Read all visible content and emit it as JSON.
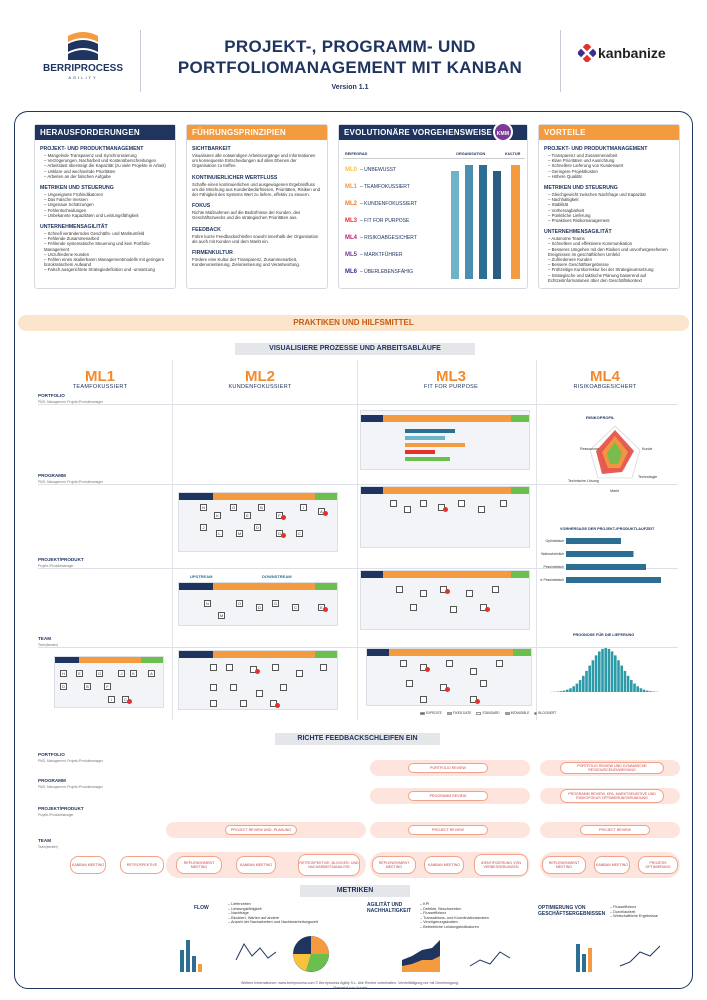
{
  "header": {
    "logo_name": "BERRIPROCESS",
    "logo_sub": "AGILITY",
    "title_line1": "PROJEKT-, PROGRAMM- UND",
    "title_line2": "PORTFOLIOMANAGEMENT MIT KANBAN",
    "version": "Version 1.1",
    "partner": "kanbanize"
  },
  "herausforderungen": {
    "title": "HERAUSFORDERUNGEN",
    "sections": [
      {
        "heading": "PROJEKT- UND PRODUKTMANAGEMENT",
        "items": [
          "Mangelnde Transparenz und Synchronisierung",
          "Verzögerungen, Nacharbeit und Kostenüberschreitungen",
          "Arbeitslast übersteigt die Kapazität (zu viele Projekte in Arbeit)",
          "Unklare und wechselnde Prioritäten",
          "Arbeiten an der falschen Aufgabe"
        ]
      },
      {
        "heading": "METRIKEN UND STEUERUNG",
        "items": [
          "Ungeeignete Frühindikatoren",
          "Das Falsche messen",
          "Ungenaue Schätzungen",
          "Fehlentscheidungen",
          "Unbekannte Kapazitäten und Leistungsfähigkeit"
        ]
      },
      {
        "heading": "UNTERNEHMENSAGILITÄT",
        "items": [
          "Schnell veränderndes Geschäfts- und Marktumfeld",
          "Fehlende Zusammenarbeit",
          "Fehlende systematische Steuerung und kein Portfolio-Management",
          "Unzufriedene Kunden",
          "Fehlen eines skalierbaren Managementmodells mit geringem bürokratischem Aufwand",
          "Falsch ausgerichtete Strategiedefinition und -umsetzung"
        ]
      }
    ]
  },
  "fuehrung": {
    "title": "FÜHRUNGSPRINZIPIEN",
    "sections": [
      {
        "heading": "SICHTBARKEIT",
        "text": "Visualisiere alle notwendigen Arbeitsvorgänge und Informationen um konsequente Entscheidungen auf allen Ebenen der Organisation zu treffen."
      },
      {
        "heading": "KONTINUIERLICHER WERTFLUSS",
        "text": "Schaffe einen kontinuierlichen und ausgewogenen Ergebnisfluss um die Mischung aus Kundenbedürfnissen, Prioritäten, Risiken und der Fähigkeit des Systems Wert zu liefern, effektiv zu steuern."
      },
      {
        "heading": "FOKUS",
        "text": "Richte Maßnahmen auf die Bedürfnisse der Kunden, des Geschäftszwecks und die strategischen Prioritäten aus."
      },
      {
        "heading": "FEEDBACK",
        "text": "Führe kurze Feedbackschleifen sowohl innerhalb der Organisation als auch mit Kunden und dem Markt ein."
      },
      {
        "heading": "FIRMENKULTUR",
        "text": "Fördere eine Kultur der Transparenz, Zusammenarbeit, Kundenorientierung, Zielorientierung und Verantwortung."
      }
    ]
  },
  "evolution": {
    "title": "EVOLUTIONÄRE VORGEHENSWEISE",
    "badge": "KMM",
    "col_reifegrad": "REIFEGRAD",
    "col_organisation": "ORGANISATION",
    "col_kultur": "KULTUR",
    "levels": [
      {
        "ml": "ML0",
        "label": "UNBEWUSST"
      },
      {
        "ml": "ML1",
        "label": "TEAMFOKUSSIERT"
      },
      {
        "ml": "ML2",
        "label": "KUNDENFOKUSSIERT"
      },
      {
        "ml": "ML3",
        "label": "FIT FOR PURPOSE"
      },
      {
        "ml": "ML4",
        "label": "RISIKOABGESICHERT"
      },
      {
        "ml": "ML5",
        "label": "MARKTFÜHRER"
      },
      {
        "ml": "ML6",
        "label": "ÜBERLEBENSFÄHIG"
      }
    ],
    "colors": [
      "#f9c23c",
      "#f39b3e",
      "#ef7b2b",
      "#e4322b",
      "#c0246f",
      "#7a3a96",
      "#3a2f8c"
    ]
  },
  "vorteile": {
    "title": "VORTEILE",
    "sections": [
      {
        "heading": "PROJEKT- UND PRODUKTMANAGEMENT",
        "items": [
          "Transparenz und Zusammenarbeit",
          "Klare Prioritäten und Ausrichtung",
          "Schnellere Lieferung von Kundenwert",
          "Geringere Projektkosten",
          "Höhere Qualität"
        ]
      },
      {
        "heading": "METRIKEN UND STEUERUNG",
        "items": [
          "Gleichgewicht zwischen Nachfrage und Kapazität",
          "Nachhaltigkeit",
          "Stabilität",
          "Vorhersagbarkeit",
          "Pünktliche Lieferung",
          "Proaktives Risikomanagement"
        ]
      },
      {
        "heading": "UNTERNEHMENSAGILITÄT",
        "items": [
          "Autonome Teams",
          "Schnellere und effektivere Kommunikation",
          "Besseres Umgehen mit den Risiken und unvorhergesehenen Ereignissen im geschäftlichen Umfeld",
          "Zufriedenere Kunden",
          "Bessere Geschäftsergebnisse",
          "Frühzeitige Kurskorrektur bei der Strategieumsetzung",
          "Strategische und taktische Planung basierend auf Echtzeitinformationen über den Geschäftskontext"
        ]
      }
    ]
  },
  "praktiken": {
    "band": "PRAKTIKEN UND HILFSMITTEL",
    "visual_title": "VISUALISIERE PROZESSE UND ARBEITSABLÄUFE",
    "columns": [
      {
        "n": "ML1",
        "s": "TEAMFOKUSSIERT"
      },
      {
        "n": "ML2",
        "s": "KUNDENFOKUSSIERT"
      },
      {
        "n": "ML3",
        "s": "FIT FOR PURPOSE"
      },
      {
        "n": "ML4",
        "s": "RISIKOABGESICHERT"
      }
    ],
    "rows": [
      {
        "label": "PORTFOLIO",
        "sub": "PMO, Management, Projekt-/Produktmanager"
      },
      {
        "label": "PROGRAMM",
        "sub": "PMO, Management, Projekt-/Produktmanager"
      },
      {
        "label": "PROJEKT/PRODUKT",
        "sub": "Projekt-/Produktmanager"
      },
      {
        "label": "TEAM",
        "sub": "Team(berater)"
      }
    ],
    "risk_profile": "RISIKOPROFIL",
    "radar_labels": [
      "Ressourcen",
      "Kunde",
      "Technologie",
      "Markt",
      "Technische Lösung"
    ],
    "forecast_title": "VORHERSAGE DER PROJEKT-/PRODUKTLAUFZEIT",
    "forecast_labels": [
      "Optimistisch",
      "Wahrscheinlich",
      "Pessimistisch",
      "Sehr Pessimistisch"
    ],
    "forecast_values": [
      22,
      27,
      32,
      38
    ],
    "delivery_title": "PROGNOSE FÜR DIE LIEFERUNG",
    "ml2_upstream": "UPSTREAM",
    "ml2_downstream": "DOWNSTREAM",
    "legend": [
      "EXPEDITE",
      "FIXED DATE",
      "STANDARD",
      "INTANGIBLE",
      "BLOCKIERT"
    ]
  },
  "feedback": {
    "title": "RICHTE FEEDBACKSCHLEIFEN EIN",
    "ml2_nodes": [
      "PROJECT REVIEW UND -PLANUNG",
      "REPLENISHMENT MEETING",
      "KANBAN MEETING",
      "RETROSPEKTIVE, BLOCKER- UND NACHARBEITSANALYSE"
    ],
    "ml1_nodes": [
      "KANBAN MEETING",
      "RETROSPEKTIVE"
    ],
    "ml3_nodes": [
      "PORTFOLIO REVIEW",
      "PROGRAMM REVIEW",
      "PROJECT REVIEW",
      "REPLENISHMENT MEETING",
      "KANBAN MEETING",
      "IDENTIFIZIERUNG VON VERBESSERUNGEN"
    ],
    "ml4_nodes": [
      "PORTFOLIO REVIEW UND DYNAMISCHE RESSOURCENZUWEISUNG",
      "PROGRAMM REVIEW, KPA, MARKTSENSITIVE UND RISIKOFOKUS OPTIMIERUNGSRUNDUNG",
      "PROJECT REVIEW",
      "REPLENISHMENT MEETING",
      "KANBAN MEETING",
      "PROZESS OPTIMIERUNG"
    ]
  },
  "metriken": {
    "title": "METRIKEN",
    "groups": [
      {
        "heading": "FLOW",
        "items": [
          "Lieferzeiten",
          "Leistungsfähigkeit",
          "Nachfrage",
          "Blockiert, Warten auf andere",
          "Anzahl der Nacharbeiten und Nachbearbeitungszeit"
        ]
      },
      {
        "heading": "AGILITÄT UND NACHHALTIGKEIT",
        "items": [
          "KPI",
          "Defekte, Beschwerden",
          "Flusseffizienz",
          "Transaktions- und Koordinationskosten",
          "Verzögerungskosten",
          "Betriebliche Leistungsindikatoren"
        ]
      },
      {
        "heading": "OPTIMIERUNG VON GESCHÄFTSERGEBNISSEN",
        "items": [
          "Flusseffizienz",
          "Durchlaufzeit",
          "Wirtschaftliche Ergebnisse"
        ]
      }
    ]
  },
  "footer": {
    "line1": "Weitere Informationen: www.berriprocess.com  © Berriprocess Agility S.L.  Alle Rechte vorbehalten. Vervielfältigung nur mit Genehmigung.",
    "line2": "Übersetzt von Xuvate"
  }
}
